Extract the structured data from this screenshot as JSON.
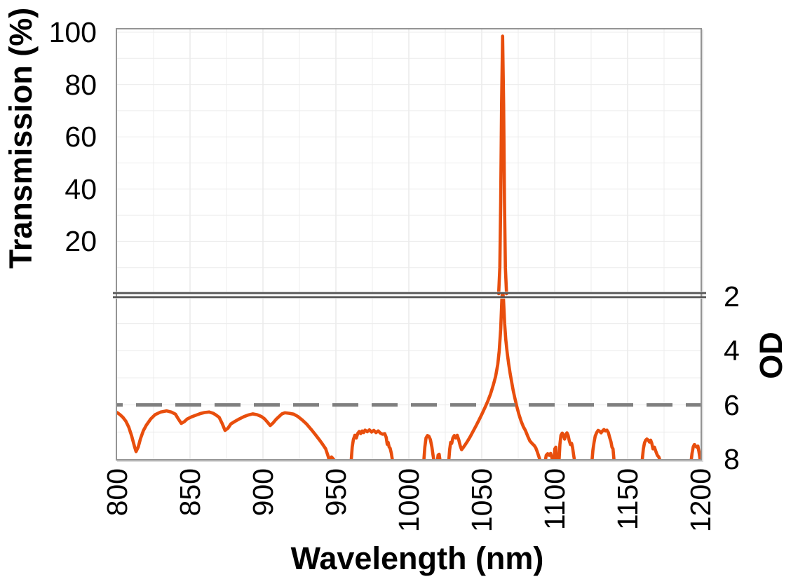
{
  "axes": {
    "x": {
      "label": "Wavelength (nm)",
      "min": 800,
      "max": 1200,
      "ticks": [
        800,
        850,
        900,
        950,
        1000,
        1050,
        1100,
        1150,
        1200
      ],
      "minor_grid_step_nm": 25,
      "tick_label_rotation_deg": -90
    },
    "y_top": {
      "label": "Transmission (%)",
      "min": 0,
      "max": 100,
      "ticks": [
        100,
        80,
        60,
        40,
        20
      ],
      "grid_step": 10
    },
    "y_bottom": {
      "label": "OD",
      "top_value": 2,
      "bottom_value": 8,
      "ticks": [
        2,
        4,
        6,
        8
      ],
      "grid_step": 1
    }
  },
  "colors": {
    "curve": "#E84E0D",
    "reference_line": "#7F7F7F",
    "grid_minor": "#ECECEC",
    "grid_major_v": "#DFDFDF",
    "frame": "#949494",
    "break_lines": "#565656",
    "text": "#000000",
    "background": "#FFFFFF"
  },
  "chart_data": {
    "type": "line",
    "xlabel": "Wavelength (nm)",
    "x_range": [
      800,
      1200
    ],
    "panels": [
      {
        "id": "top",
        "ylabel": "Transmission (%)",
        "y_range": [
          0,
          100
        ],
        "grid": true
      },
      {
        "id": "bottom",
        "ylabel": "OD",
        "y_top_to_bottom": [
          2,
          8
        ],
        "grid": true
      }
    ],
    "axis_break": "double horizontal line between Transmission 0% and OD 2",
    "peak": {
      "wavelength_nm": 1064,
      "max_transmission_pct": 98.5
    },
    "series": [
      {
        "name": "transmission-peak",
        "panel": "top",
        "style": "solid",
        "points": [
          [
            1061.6,
            0
          ],
          [
            1062.4,
            10
          ],
          [
            1063.0,
            35
          ],
          [
            1063.6,
            72
          ],
          [
            1064.3,
            98.5
          ],
          [
            1065.0,
            72
          ],
          [
            1065.6,
            35
          ],
          [
            1066.2,
            10
          ],
          [
            1067.0,
            0
          ]
        ]
      },
      {
        "name": "od-blocking-curve",
        "panel": "bottom",
        "style": "solid",
        "segments": [
          [
            [
              800,
              6.28
            ],
            [
              802,
              6.36
            ],
            [
              804,
              6.46
            ],
            [
              806,
              6.6
            ],
            [
              808,
              6.82
            ],
            [
              810,
              7.15
            ],
            [
              812,
              7.55
            ],
            [
              813,
              7.72
            ],
            [
              814.5,
              7.55
            ],
            [
              816,
              7.25
            ],
            [
              818,
              6.95
            ],
            [
              820,
              6.75
            ],
            [
              823,
              6.52
            ],
            [
              826,
              6.36
            ],
            [
              830,
              6.26
            ],
            [
              834,
              6.22
            ],
            [
              837,
              6.26
            ],
            [
              840,
              6.34
            ],
            [
              842,
              6.52
            ],
            [
              844,
              6.68
            ],
            [
              846,
              6.62
            ],
            [
              848,
              6.52
            ],
            [
              851,
              6.44
            ],
            [
              854,
              6.38
            ],
            [
              857,
              6.32
            ],
            [
              860,
              6.28
            ],
            [
              863,
              6.26
            ],
            [
              866,
              6.31
            ],
            [
              868,
              6.38
            ],
            [
              870,
              6.46
            ],
            [
              872,
              6.68
            ],
            [
              874,
              6.94
            ],
            [
              876,
              6.86
            ],
            [
              878,
              6.7
            ],
            [
              881,
              6.6
            ],
            [
              884,
              6.51
            ],
            [
              887,
              6.43
            ],
            [
              890,
              6.37
            ],
            [
              893,
              6.33
            ],
            [
              896,
              6.36
            ],
            [
              899,
              6.43
            ],
            [
              901,
              6.51
            ],
            [
              903,
              6.63
            ],
            [
              905,
              6.76
            ],
            [
              907,
              6.66
            ],
            [
              909,
              6.53
            ],
            [
              911,
              6.43
            ],
            [
              913,
              6.33
            ],
            [
              915,
              6.29
            ],
            [
              918,
              6.31
            ],
            [
              921,
              6.34
            ],
            [
              924,
              6.43
            ],
            [
              927,
              6.56
            ],
            [
              930,
              6.71
            ],
            [
              933,
              6.9
            ],
            [
              936,
              7.1
            ],
            [
              939,
              7.31
            ],
            [
              941,
              7.46
            ],
            [
              943,
              7.62
            ],
            [
              944.5,
              7.86
            ],
            [
              945.5,
              8.05
            ],
            [
              947,
              7.92
            ],
            [
              948,
              7.98
            ],
            [
              949,
              8.05
            ]
          ],
          [
            [
              960.5,
              8.05
            ],
            [
              961.2,
              7.55
            ],
            [
              962,
              7.28
            ],
            [
              963,
              7.12
            ],
            [
              964,
              7.22
            ],
            [
              965,
              7.05
            ],
            [
              966,
              6.98
            ],
            [
              967,
              7.06
            ],
            [
              968,
              6.96
            ],
            [
              969,
              7.02
            ],
            [
              970,
              6.93
            ],
            [
              971.5,
              6.99
            ],
            [
              973,
              6.92
            ],
            [
              974.5,
              7.0
            ],
            [
              976,
              6.94
            ],
            [
              977.5,
              7.02
            ],
            [
              979,
              6.96
            ],
            [
              980.5,
              7.04
            ],
            [
              982,
              7.08
            ],
            [
              983.5,
              7.06
            ],
            [
              984.5,
              7.2
            ],
            [
              985.2,
              7.45
            ],
            [
              985.8,
              7.38
            ],
            [
              986.5,
              7.55
            ],
            [
              987.2,
              7.6
            ],
            [
              988,
              7.78
            ],
            [
              988.8,
              8.05
            ]
          ],
          [
            [
              1010.3,
              8.05
            ],
            [
              1011,
              7.55
            ],
            [
              1011.8,
              7.22
            ],
            [
              1012.8,
              7.13
            ],
            [
              1013.8,
              7.16
            ],
            [
              1014.8,
              7.28
            ],
            [
              1015.8,
              7.55
            ],
            [
              1016.6,
              7.85
            ],
            [
              1017.2,
              8.05
            ]
          ],
          [
            [
              1019.6,
              8.05
            ],
            [
              1020.1,
              7.85
            ],
            [
              1020.8,
              7.82
            ],
            [
              1021.4,
              8.05
            ]
          ],
          [
            [
              1027.4,
              8.05
            ],
            [
              1028,
              7.65
            ],
            [
              1028.7,
              7.38
            ],
            [
              1029.4,
              7.42
            ],
            [
              1030.2,
              7.22
            ],
            [
              1031.2,
              7.13
            ],
            [
              1032.2,
              7.22
            ],
            [
              1033.2,
              7.12
            ],
            [
              1034.2,
              7.28
            ],
            [
              1035.2,
              7.5
            ],
            [
              1036.2,
              7.65
            ],
            [
              1037.2,
              7.58
            ],
            [
              1038.5,
              7.48
            ],
            [
              1040,
              7.36
            ],
            [
              1042,
              7.18
            ],
            [
              1044,
              6.98
            ],
            [
              1046,
              6.78
            ],
            [
              1048,
              6.57
            ],
            [
              1050,
              6.35
            ],
            [
              1052,
              6.12
            ],
            [
              1054,
              5.88
            ],
            [
              1056,
              5.6
            ],
            [
              1058,
              5.25
            ],
            [
              1059.5,
              4.95
            ],
            [
              1061,
              4.5
            ],
            [
              1062,
              4.0
            ],
            [
              1063,
              3.2
            ],
            [
              1063.8,
              2.1
            ],
            [
              1064.3,
              1.75
            ],
            [
              1064.9,
              2.1
            ],
            [
              1065.7,
              3.0
            ],
            [
              1066.5,
              3.6
            ],
            [
              1067.5,
              4.1
            ],
            [
              1068.5,
              4.5
            ],
            [
              1069.5,
              4.85
            ],
            [
              1070.5,
              5.15
            ],
            [
              1071.5,
              5.45
            ],
            [
              1072.5,
              5.7
            ],
            [
              1074,
              6.05
            ],
            [
              1075.5,
              6.35
            ],
            [
              1077,
              6.6
            ],
            [
              1078.5,
              6.8
            ],
            [
              1080,
              6.95
            ],
            [
              1081.5,
              7.15
            ],
            [
              1083,
              7.33
            ],
            [
              1084.5,
              7.42
            ],
            [
              1086,
              7.5
            ],
            [
              1087,
              7.58
            ],
            [
              1088,
              7.72
            ],
            [
              1089,
              7.88
            ],
            [
              1090,
              8.05
            ]
          ],
          [
            [
              1093.6,
              8.05
            ],
            [
              1094.2,
              7.86
            ],
            [
              1095.2,
              7.8
            ],
            [
              1096.2,
              7.86
            ],
            [
              1097.2,
              7.79
            ],
            [
              1098,
              7.92
            ],
            [
              1098.5,
              8.05
            ]
          ],
          [
            [
              1099.6,
              8.05
            ],
            [
              1100.1,
              7.62
            ],
            [
              1100.8,
              7.56
            ],
            [
              1101.4,
              8.05
            ]
          ],
          [
            [
              1103,
              8.05
            ],
            [
              1103.6,
              7.45
            ],
            [
              1104.3,
              7.12
            ],
            [
              1105.2,
              7.04
            ],
            [
              1106,
              7.12
            ],
            [
              1106.8,
              7.26
            ],
            [
              1107.6,
              7.1
            ],
            [
              1108.4,
              7.03
            ],
            [
              1109.2,
              7.12
            ],
            [
              1110,
              7.32
            ],
            [
              1110.8,
              7.46
            ],
            [
              1111.6,
              7.42
            ],
            [
              1112.3,
              7.58
            ],
            [
              1113,
              7.85
            ],
            [
              1113.6,
              8.05
            ]
          ],
          [
            [
              1125.6,
              8.05
            ],
            [
              1126.2,
              7.68
            ],
            [
              1127,
              7.38
            ],
            [
              1127.8,
              7.15
            ],
            [
              1128.8,
              7.02
            ],
            [
              1129.8,
              6.94
            ],
            [
              1130.8,
              6.97
            ],
            [
              1131.8,
              7.03
            ],
            [
              1132.8,
              6.96
            ],
            [
              1133.8,
              6.91
            ],
            [
              1134.8,
              6.96
            ],
            [
              1135.8,
              6.93
            ],
            [
              1136.8,
              7.02
            ],
            [
              1137.8,
              7.22
            ],
            [
              1138.6,
              7.36
            ],
            [
              1139.3,
              7.56
            ],
            [
              1140,
              7.62
            ],
            [
              1140.7,
              8.05
            ]
          ],
          [
            [
              1160,
              8.05
            ],
            [
              1160.8,
              7.62
            ],
            [
              1161.6,
              7.4
            ],
            [
              1162.4,
              7.3
            ],
            [
              1163.2,
              7.26
            ],
            [
              1164.2,
              7.3
            ],
            [
              1165,
              7.37
            ],
            [
              1165.8,
              7.3
            ],
            [
              1166.6,
              7.42
            ],
            [
              1167.4,
              7.62
            ],
            [
              1168.4,
              7.56
            ],
            [
              1169.4,
              7.72
            ],
            [
              1170.4,
              7.86
            ],
            [
              1171.4,
              7.92
            ],
            [
              1172.2,
              8.05
            ]
          ],
          [
            [
              1193.6,
              8.05
            ],
            [
              1194.2,
              7.78
            ],
            [
              1195,
              7.55
            ],
            [
              1195.8,
              7.46
            ],
            [
              1196.6,
              7.52
            ],
            [
              1197.4,
              7.56
            ],
            [
              1198.2,
              7.52
            ],
            [
              1198.9,
              7.72
            ],
            [
              1199.4,
              7.9
            ],
            [
              1199.8,
              8.05
            ]
          ]
        ]
      },
      {
        "name": "od6-reference-line",
        "panel": "bottom",
        "style": "dashed",
        "type": "hline",
        "y": 6
      }
    ]
  }
}
